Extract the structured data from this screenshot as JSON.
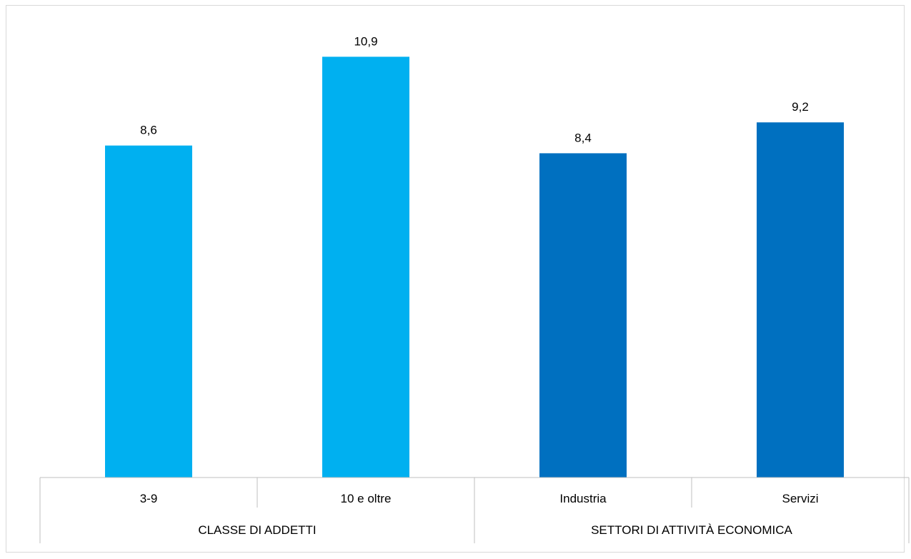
{
  "chart_data": {
    "type": "bar",
    "categories": [
      "3-9",
      "10 e oltre",
      "Industria",
      "Servizi"
    ],
    "values": [
      8.6,
      10.9,
      8.4,
      9.2
    ],
    "value_labels": [
      "8,6",
      "10,9",
      "8,4",
      "9,2"
    ],
    "groups": [
      {
        "label": "CLASSE DI ADDETTI",
        "categories": [
          "3-9",
          "10 e oltre"
        ]
      },
      {
        "label": "SETTORI DI ATTIVITÀ ECONOMICA",
        "categories": [
          "Industria",
          "Servizi"
        ]
      }
    ],
    "bar_colors": [
      "#00b0f0",
      "#00b0f0",
      "#0070c0",
      "#0070c0"
    ],
    "ylim": [
      0,
      12
    ],
    "grid": false,
    "legend": "none",
    "title": "",
    "xlabel": "",
    "ylabel": ""
  }
}
